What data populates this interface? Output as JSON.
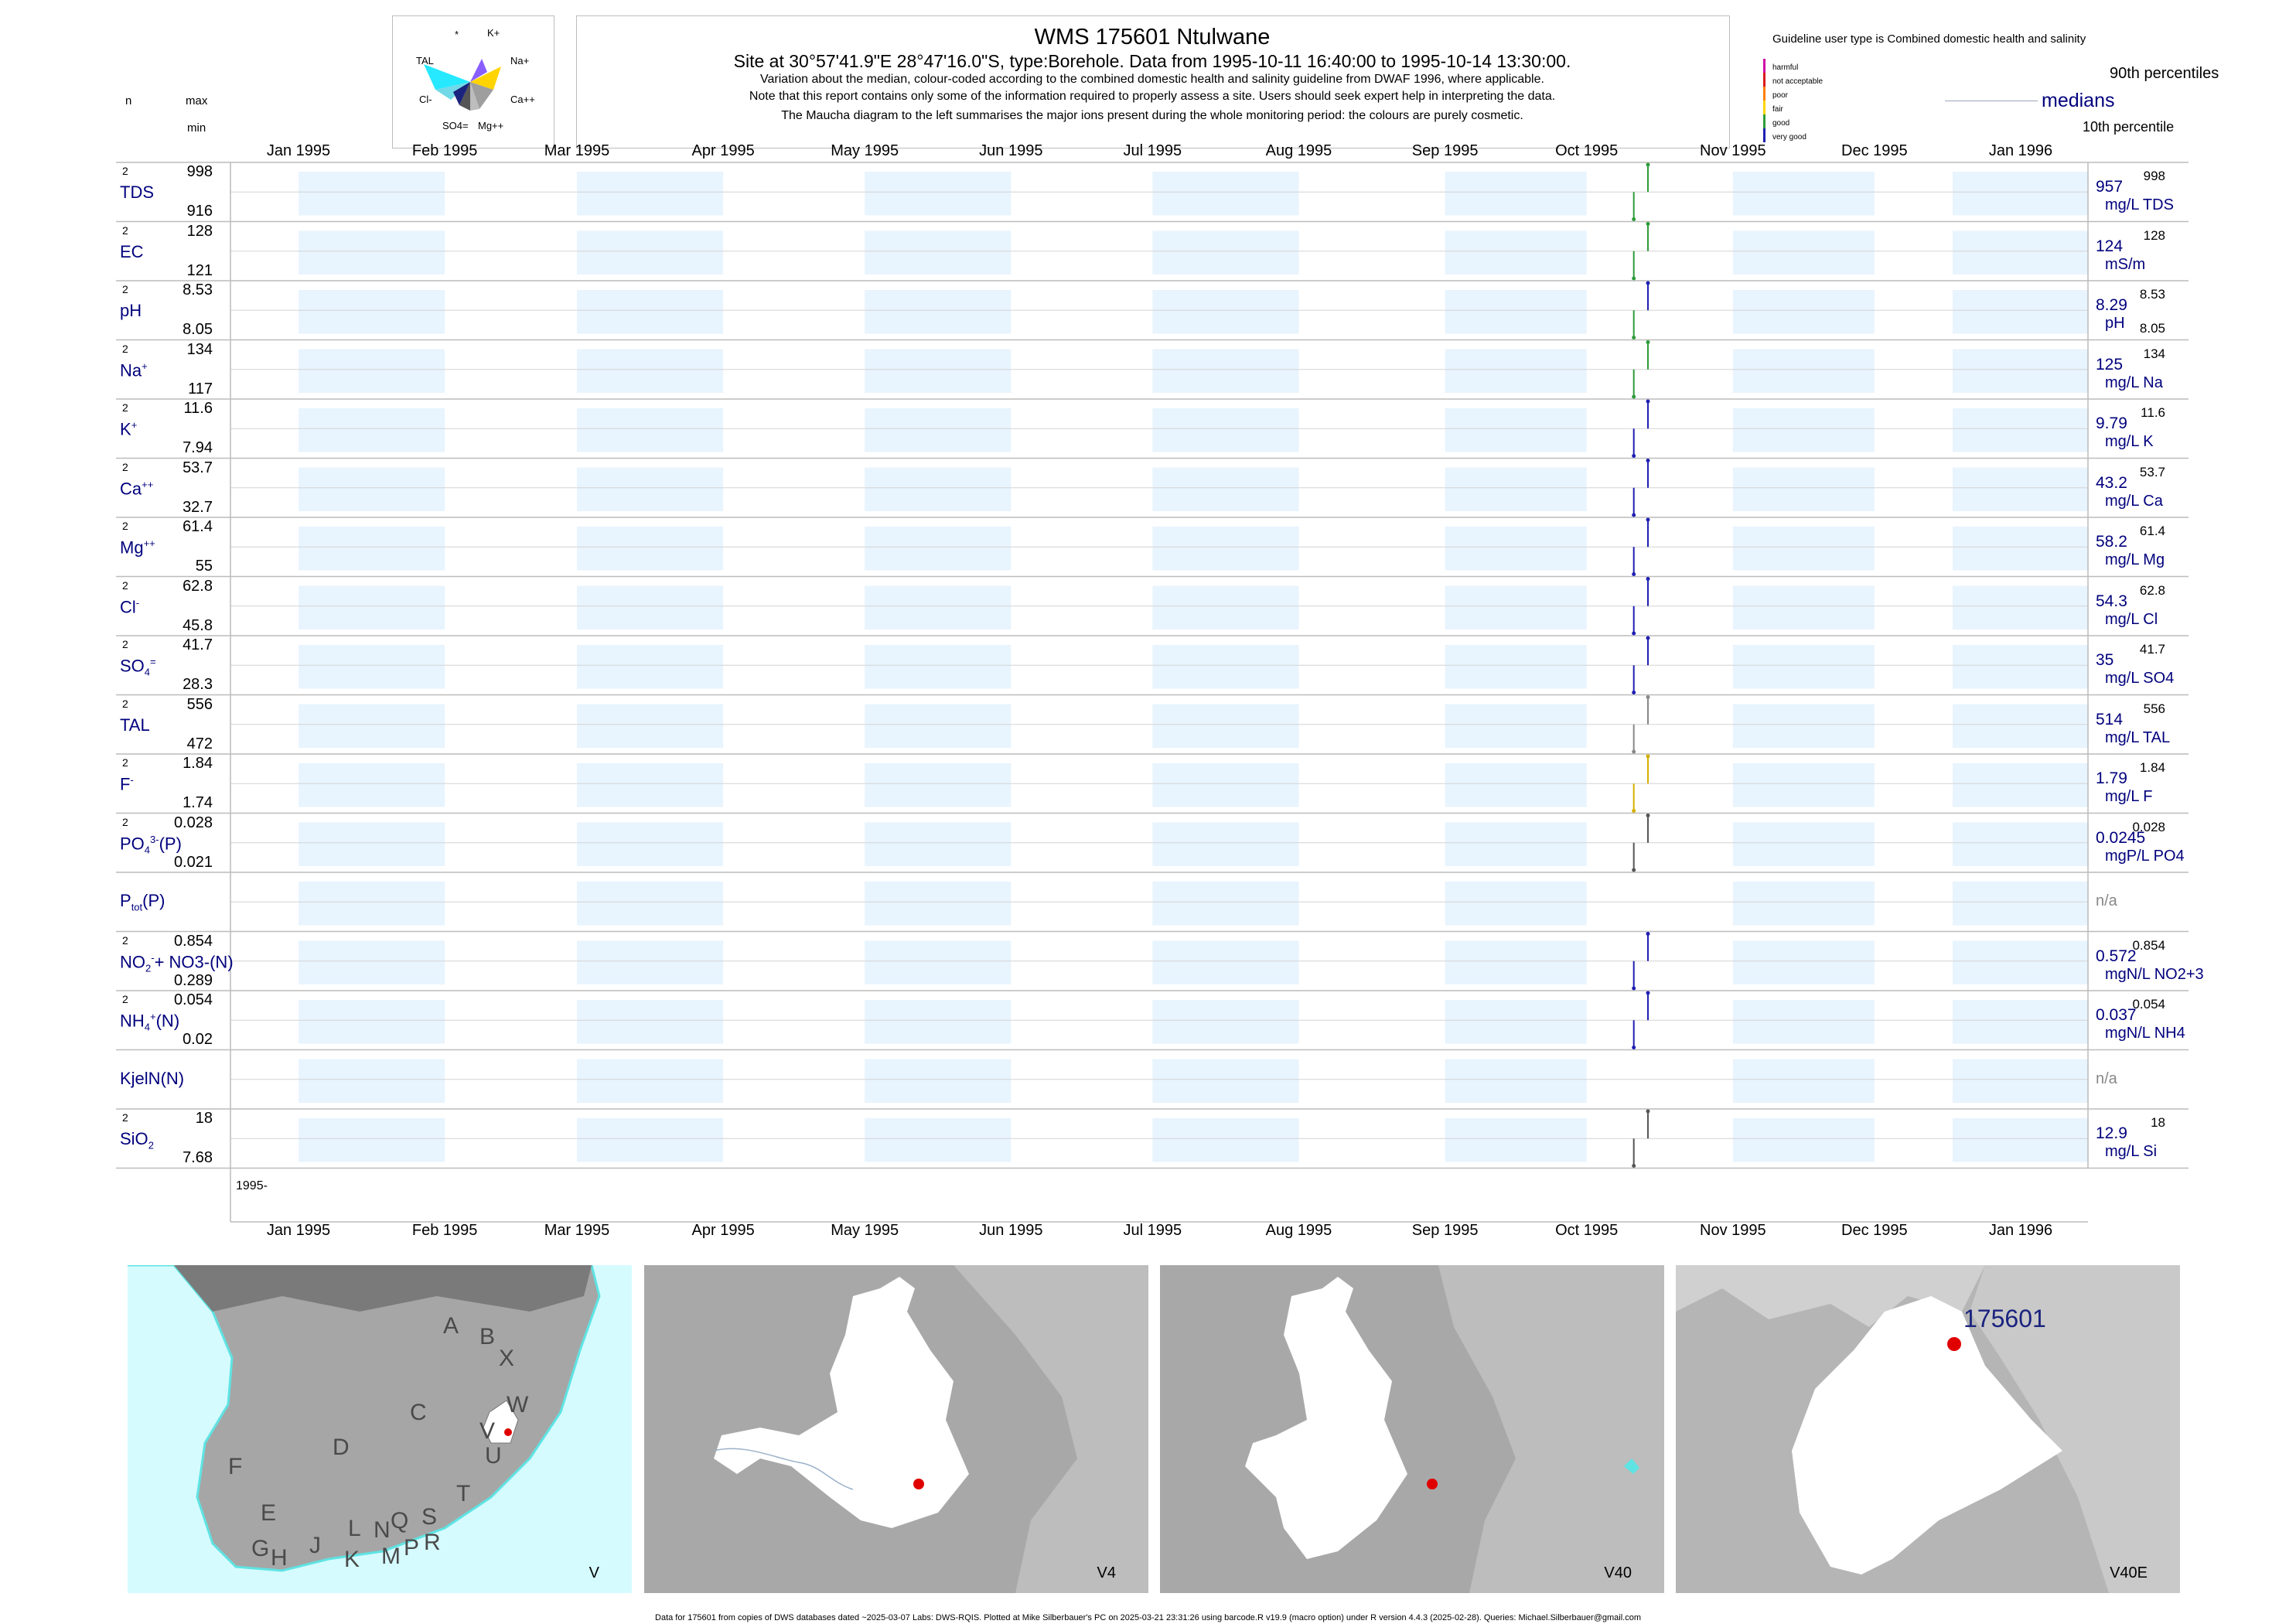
{
  "header": {
    "title": "WMS 175601  Ntulwane",
    "subtitle": "Site at 30°57'41.9\"E 28°47'16.0\"S, type:Borehole.  Data from 1995-10-11 16:40:00 to 1995-10-14 13:30:00.",
    "note1": "Variation about the median,  colour-coded according to the combined domestic health and salinity guideline from DWAF 1996, where applicable.",
    "note2": "Note that this report contains only some of the information required to properly assess a site. Users should seek expert help in interpreting the data.",
    "note3": "The Maucha diagram to the left summarises the major ions present during the whole monitoring period: the colours are purely cosmetic.",
    "col_n": "n",
    "col_max": "max",
    "col_min": "min"
  },
  "maucha": {
    "labels": {
      "top": "*",
      "k": "K+",
      "tal": "TAL",
      "na": "Na+",
      "cl": "Cl-",
      "ca": "Ca++",
      "so4": "SO4=",
      "mg": "Mg++"
    },
    "colors": {
      "tal": "#00e5ff",
      "na": "#ffd400",
      "ca": "#9e9e9e",
      "k": "#7c4dff",
      "cl": "#1a237e",
      "so4": "#333333",
      "mg": "#bdbdbd"
    }
  },
  "legend": {
    "heading": "Guideline user type is Combined domestic health and salinity",
    "levels": [
      "harmful",
      "not acceptable",
      "poor",
      "fair",
      "good",
      "very good"
    ],
    "level_colors": [
      "#d10aa6",
      "#d81b1b",
      "#ff7f00",
      "#ffd400",
      "#2e9b3a",
      "#1f1fb3"
    ],
    "p90": "90th percentiles",
    "medians": "medians",
    "p10": "10th percentile"
  },
  "months": [
    "Jan 1995",
    "Feb 1995",
    "Mar 1995",
    "Apr 1995",
    "May 1995",
    "Jun 1995",
    "Jul 1995",
    "Aug 1995",
    "Sep 1995",
    "Oct 1995",
    "Nov 1995",
    "Dec 1995",
    "Jan 1996"
  ],
  "year_label": "1995-",
  "chart_data": {
    "type": "line",
    "x_range": [
      "1995-01-01",
      "1996-01-01"
    ],
    "sample_dates": [
      "1995-10-11",
      "1995-10-14"
    ],
    "panels": [
      {
        "label": "TDS",
        "n": "2",
        "max": "998",
        "min": "916",
        "median": "957",
        "p90": "998",
        "unit": "mg/L TDS",
        "colors": [
          "#2e9b3a",
          "#2e9b3a"
        ]
      },
      {
        "label": "EC",
        "n": "2",
        "max": "128",
        "min": "121",
        "median": "124",
        "p90": "128",
        "unit": "mS/m",
        "colors": [
          "#2e9b3a",
          "#2e9b3a"
        ]
      },
      {
        "label": "pH",
        "n": "2",
        "max": "8.53",
        "min": "8.05",
        "median": "8.29",
        "p90": "8.53",
        "p10": "8.05",
        "unit": "pH",
        "colors": [
          "#2e9b3a",
          "#1f1fb3"
        ]
      },
      {
        "label": "Na",
        "sup": "+",
        "n": "2",
        "max": "134",
        "min": "117",
        "median": "125",
        "p90": "134",
        "unit": "mg/L Na",
        "colors": [
          "#2e9b3a",
          "#2e9b3a"
        ]
      },
      {
        "label": "K",
        "sup": "+",
        "n": "2",
        "max": "11.6",
        "min": "7.94",
        "median": "9.79",
        "p90": "11.6",
        "unit": "mg/L K",
        "colors": [
          "#1f1fb3",
          "#1f1fb3"
        ]
      },
      {
        "label": "Ca",
        "sup": "++",
        "n": "2",
        "max": "53.7",
        "min": "32.7",
        "median": "43.2",
        "p90": "53.7",
        "unit": "mg/L Ca",
        "colors": [
          "#1f1fb3",
          "#1f1fb3"
        ]
      },
      {
        "label": "Mg",
        "sup": "++",
        "n": "2",
        "max": "61.4",
        "min": "55",
        "median": "58.2",
        "p90": "61.4",
        "unit": "mg/L Mg",
        "colors": [
          "#1f1fb3",
          "#1f1fb3"
        ]
      },
      {
        "label": "Cl",
        "sup": "-",
        "n": "2",
        "max": "62.8",
        "min": "45.8",
        "median": "54.3",
        "p90": "62.8",
        "unit": "mg/L Cl",
        "colors": [
          "#1f1fb3",
          "#1f1fb3"
        ]
      },
      {
        "label": "SO",
        "sub": "4",
        "sup": "=",
        "n": "2",
        "max": "41.7",
        "min": "28.3",
        "median": "35",
        "p90": "41.7",
        "unit": "mg/L SO4",
        "colors": [
          "#1f1fb3",
          "#1f1fb3"
        ]
      },
      {
        "label": "TAL",
        "n": "2",
        "max": "556",
        "min": "472",
        "median": "514",
        "p90": "556",
        "unit": "mg/L TAL",
        "colors": [
          "#888888",
          "#888888"
        ]
      },
      {
        "label": "F",
        "sup": "-",
        "n": "2",
        "max": "1.84",
        "min": "1.74",
        "median": "1.79",
        "p90": "1.84",
        "unit": "mg/L F",
        "colors": [
          "#d4b000",
          "#d4b000"
        ]
      },
      {
        "label": "PO",
        "sub": "4",
        "sup": "3-",
        "tail": "(P)",
        "n": "2",
        "max": "0.028",
        "min": "0.021",
        "median": "0.0245",
        "p90": "0.028",
        "unit": "mgP/L PO4",
        "colors": [
          "#555555",
          "#555555"
        ]
      },
      {
        "label": "P",
        "sub": "tot",
        "tail": "(P)",
        "n": "",
        "max": "",
        "min": "",
        "median": "n/a",
        "unit": "",
        "colors": []
      },
      {
        "label": "NO",
        "sub": "2",
        "sup": "-",
        "tail": "+ NO3-(N)",
        "n": "2",
        "max": "0.854",
        "min": "0.289",
        "median": "0.572",
        "p90": "0.854",
        "unit": "mgN/L NO2+3",
        "colors": [
          "#1f1fb3",
          "#1f1fb3"
        ]
      },
      {
        "label": "NH",
        "sub": "4",
        "sup": "+",
        "tail": "(N)",
        "n": "2",
        "max": "0.054",
        "min": "0.02",
        "median": "0.037",
        "p90": "0.054",
        "unit": "mgN/L NH4",
        "colors": [
          "#1f1fb3",
          "#1f1fb3"
        ]
      },
      {
        "label": "KjelN(N)",
        "n": "",
        "max": "",
        "min": "",
        "median": "n/a",
        "unit": "",
        "colors": []
      },
      {
        "label": "SiO",
        "sub": "2",
        "n": "2",
        "max": "18",
        "min": "7.68",
        "median": "12.9",
        "p90": "18",
        "unit": "mg/L Si",
        "colors": [
          "#555555",
          "#555555"
        ]
      }
    ]
  },
  "maps": [
    {
      "label": "V",
      "letters": [
        "A",
        "B",
        "X",
        "W",
        "C",
        "V",
        "U",
        "D",
        "T",
        "F",
        "E",
        "G",
        "H",
        "J",
        "K",
        "L",
        "N",
        "M",
        "P",
        "Q",
        "R",
        "S"
      ]
    },
    {
      "label": "V4"
    },
    {
      "label": "V40"
    },
    {
      "label": "V40E",
      "site": "175601"
    }
  ],
  "footer": "Data for 175601 from copies of DWS databases dated ~2025-03-07 Labs: DWS-RQIS. Plotted at Mike Silberbauer's PC on 2025-03-21 23:31:26 using barcode.R v19.9 (macro option) under R version 4.4.3 (2025-02-28). Queries: Michael.Silberbauer@gmail.com"
}
